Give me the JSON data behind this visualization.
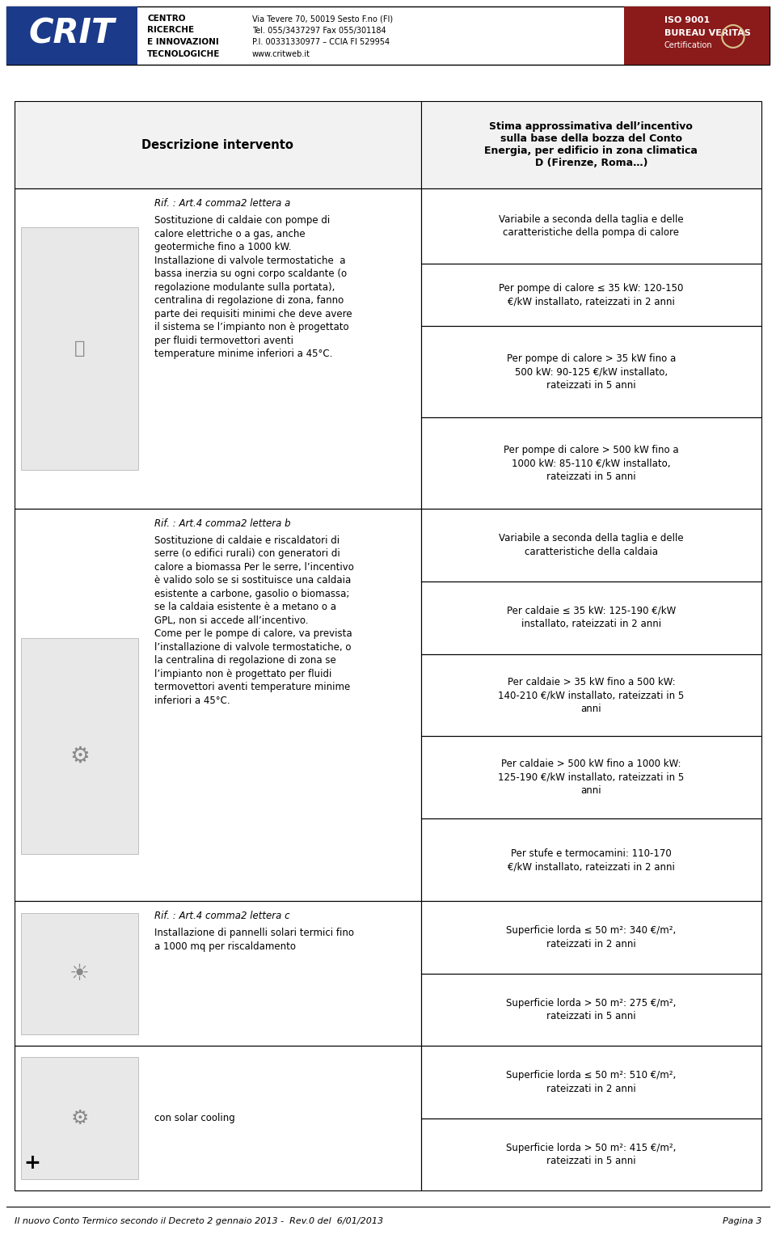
{
  "page_width": 9.6,
  "page_height": 15.32,
  "background_color": "#ffffff",
  "header": {
    "company_lines": [
      "CENTRO",
      "RICERCHE",
      "E INNOVAZIONI",
      "TECNOLOGICHE"
    ],
    "address_lines": [
      "Via Tevere 70, 50019 Sesto F.no (FI)",
      "Tel. 055/3437297 Fax 055/301184",
      "P.I. 00331330977 – CCIA FI 529954",
      "www.critweb.it"
    ],
    "cert_lines": [
      "ISO 9001",
      "BUREAU VERITAS",
      "Certification"
    ]
  },
  "footer_left": "Il nuovo Conto Termico secondo il Decreto 2 gennaio 2013 -  Rev.0 del  6/01/2013",
  "footer_right": "Pagina 3",
  "col1_header": "Descrizione intervento",
  "col2_header": "Stima approssimativa dell’incentivo\nsulla base della bozza del Conto\nEnergia, per edificio in zona climatica\nD (Firenze, Roma…)",
  "rows": [
    {
      "title": "Rif. : Art.4 comma2 lettera a",
      "body": "Sostituzione di caldaie con pompe di\ncalore elettriche o a gas, anche\ngeotermiche fino a 1000 kW.\nInstallazione di valvole termostatiche  a\nbassa inerzia su ogni corpo scaldante (o\nregolazione modulante sulla portata),\ncentralina di regolazione di zona, fanno\nparte dei requisiti minimi che deve avere\nil sistema se l’impianto non è progettato\nper fluidi termovettori aventi\ntemperature minime inferiori a 45°C.",
      "right_cells": [
        "Variabile a seconda della taglia e delle\ncaratteristiche della pompa di calore",
        "Per pompe di calore ≤ 35 kW: 120-150\n€/kW installato, rateizzati in 2 anni",
        "Per pompe di calore > 35 kW fino a\n500 kW: 90-125 €/kW installato,\nrateizzati in 5 anni",
        "Per pompe di calore > 500 kW fino a\n1000 kW: 85-110 €/kW installato,\nrateizzati in 5 anni"
      ]
    },
    {
      "title": "Rif. : Art.4 comma2 lettera b",
      "body": "Sostituzione di caldaie e riscaldatori di\nserre (o edifici rurali) con generatori di\ncalore a biomassa Per le serre, l’incentivo\nè valido solo se si sostituisce una caldaia\nesistente a carbone, gasolio o biomassa;\nse la caldaia esistente è a metano o a\nGPL, non si accede all’incentivo.\nCome per le pompe di calore, va prevista\nl’installazione di valvole termostatiche, o\nla centralina di regolazione di zona se\nl’impianto non è progettato per fluidi\ntermovettori aventi temperature minime\ninferiori a 45°C.",
      "right_cells": [
        "Variabile a seconda della taglia e delle\ncaratteristiche della caldaia",
        "Per caldaie ≤ 35 kW: 125-190 €/kW\ninstallato, rateizzati in 2 anni",
        "Per caldaie > 35 kW fino a 500 kW:\n140-210 €/kW installato, rateizzati in 5\nanni",
        "Per caldaie > 500 kW fino a 1000 kW:\n125-190 €/kW installato, rateizzati in 5\nanni",
        "Per stufe e termocamini: 110-170\n€/kW installato, rateizzati in 2 anni"
      ]
    },
    {
      "title": "Rif. : Art.4 comma2 lettera c",
      "body": "Installazione di pannelli solari termici fino\na 1000 mq per riscaldamento",
      "right_cells": [
        "Superficie lorda ≤ 50 m²: 340 €/m²,\nrateizzati in 2 anni",
        "Superficie lorda > 50 m²: 275 €/m²,\nrateizzati in 5 anni"
      ]
    },
    {
      "title": "con solar cooling",
      "body": "",
      "right_cells": [
        "Superficie lorda ≤ 50 m²: 510 €/m²,\nrateizzati in 2 anni",
        "Superficie lorda > 50 m²: 415 €/m²,\nrateizzati in 5 anni"
      ]
    }
  ]
}
